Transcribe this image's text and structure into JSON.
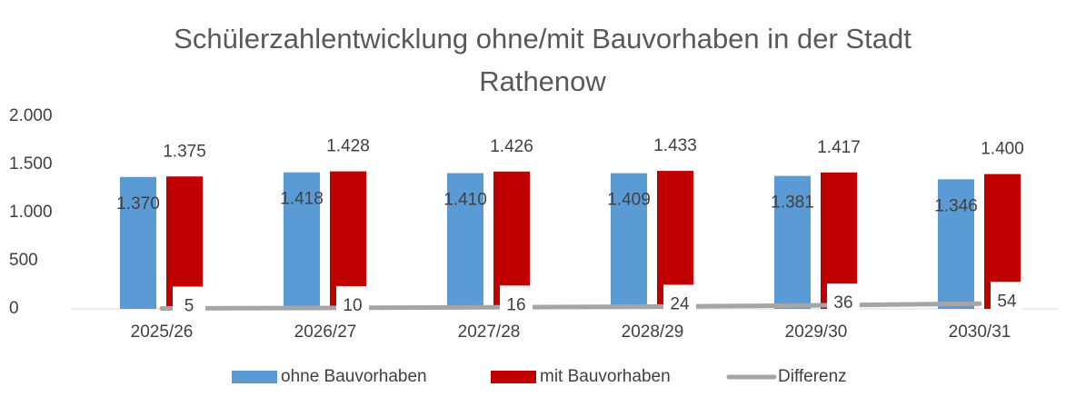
{
  "chart_data": {
    "type": "bar",
    "title": [
      "Schülerzahlentwicklung ohne/mit Bauvorhaben in der Stadt",
      "Rathenow"
    ],
    "categories": [
      "2025/26",
      "2026/27",
      "2027/28",
      "2028/29",
      "2029/30",
      "2030/31"
    ],
    "series": [
      {
        "name": "ohne Bauvorhaben",
        "color": "#5b9bd5",
        "values": [
          1370,
          1418,
          1410,
          1409,
          1381,
          1346
        ],
        "value_labels": [
          "1.370",
          "1.418",
          "1.410",
          "1.409",
          "1.381",
          "1.346"
        ]
      },
      {
        "name": "mit Bauvorhaben",
        "color": "#c00000",
        "values": [
          1375,
          1428,
          1426,
          1433,
          1417,
          1400
        ],
        "value_labels": [
          "1.375",
          "1.428",
          "1.426",
          "1.433",
          "1.417",
          "1.400"
        ]
      },
      {
        "name": "Differenz",
        "type": "line",
        "color": "#a5a5a5",
        "values": [
          5,
          10,
          16,
          24,
          36,
          54
        ]
      }
    ],
    "ylim": [
      0,
      2000
    ],
    "yticks": [
      0,
      500,
      {
        "value": 1000,
        "label": "1.000"
      },
      {
        "value": 1500,
        "label": "1.500"
      },
      {
        "value": 2000,
        "label": "2.000"
      }
    ],
    "legend": "bottom"
  }
}
